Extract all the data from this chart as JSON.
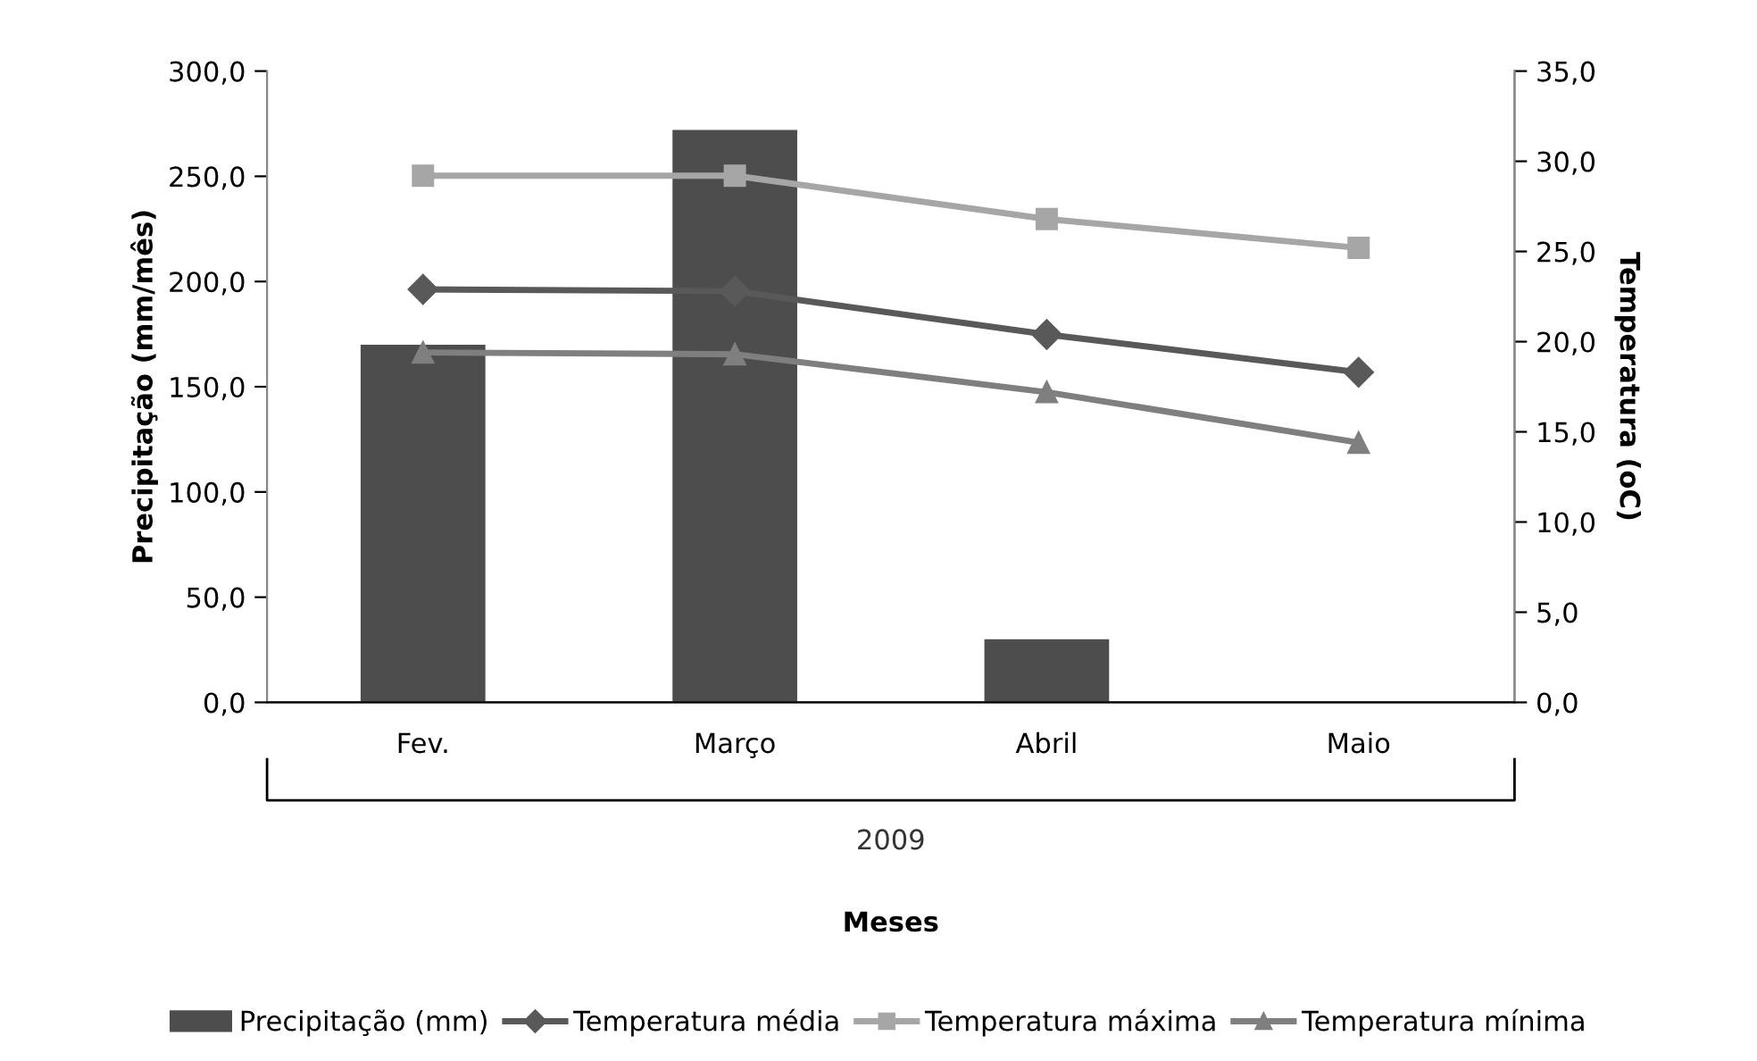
{
  "chart_data": {
    "type": "bar",
    "ylabel": "Precipitação (mm/mês)",
    "y2label": "Temperatura (oC)",
    "categories": [
      "Fev.",
      "Março",
      "Abril",
      "Maio"
    ],
    "annotations": [
      "2009",
      "Meses"
    ],
    "series": [
      {
        "name": "Precipitação (mm)",
        "color": "#4d4d4d",
        "values": [
          170,
          272,
          30,
          0
        ]
      },
      {
        "name": "Temperatura média",
        "type": "line",
        "axis": "y2",
        "marker": "diamond",
        "color": "#595959",
        "values": [
          22.9,
          22.8,
          20.4,
          18.3
        ]
      },
      {
        "name": "Temperatura máxima",
        "type": "line",
        "axis": "y2",
        "marker": "square",
        "color": "#a6a6a6",
        "values": [
          29.2,
          29.2,
          26.8,
          25.2
        ]
      },
      {
        "name": "Temperatura mínima",
        "type": "line",
        "axis": "y2",
        "marker": "triangle",
        "color": "#7f7f7f",
        "values": [
          19.4,
          19.3,
          17.2,
          14.4
        ]
      }
    ],
    "ylim": [
      0,
      300
    ],
    "yticks": [
      {
        "value": 0,
        "label": "0,0"
      },
      {
        "value": 50,
        "label": "50,0"
      },
      {
        "value": 100,
        "label": "100,0"
      },
      {
        "value": 150,
        "label": "150,0"
      },
      {
        "value": 200,
        "label": "200,0"
      },
      {
        "value": 250,
        "label": "250,0"
      },
      {
        "value": 300,
        "label": "300,0"
      }
    ],
    "y2lim": [
      0,
      35
    ],
    "y2ticks": [
      {
        "value": 0,
        "label": "0,0"
      },
      {
        "value": 5,
        "label": "5,0"
      },
      {
        "value": 10,
        "label": "10,0"
      },
      {
        "value": 15,
        "label": "15,0"
      },
      {
        "value": 20,
        "label": "20,0"
      },
      {
        "value": 25,
        "label": "25,0"
      },
      {
        "value": 30,
        "label": "30,0"
      },
      {
        "value": 35,
        "label": "35,0"
      }
    ],
    "grid": false,
    "legend": "bottom"
  }
}
